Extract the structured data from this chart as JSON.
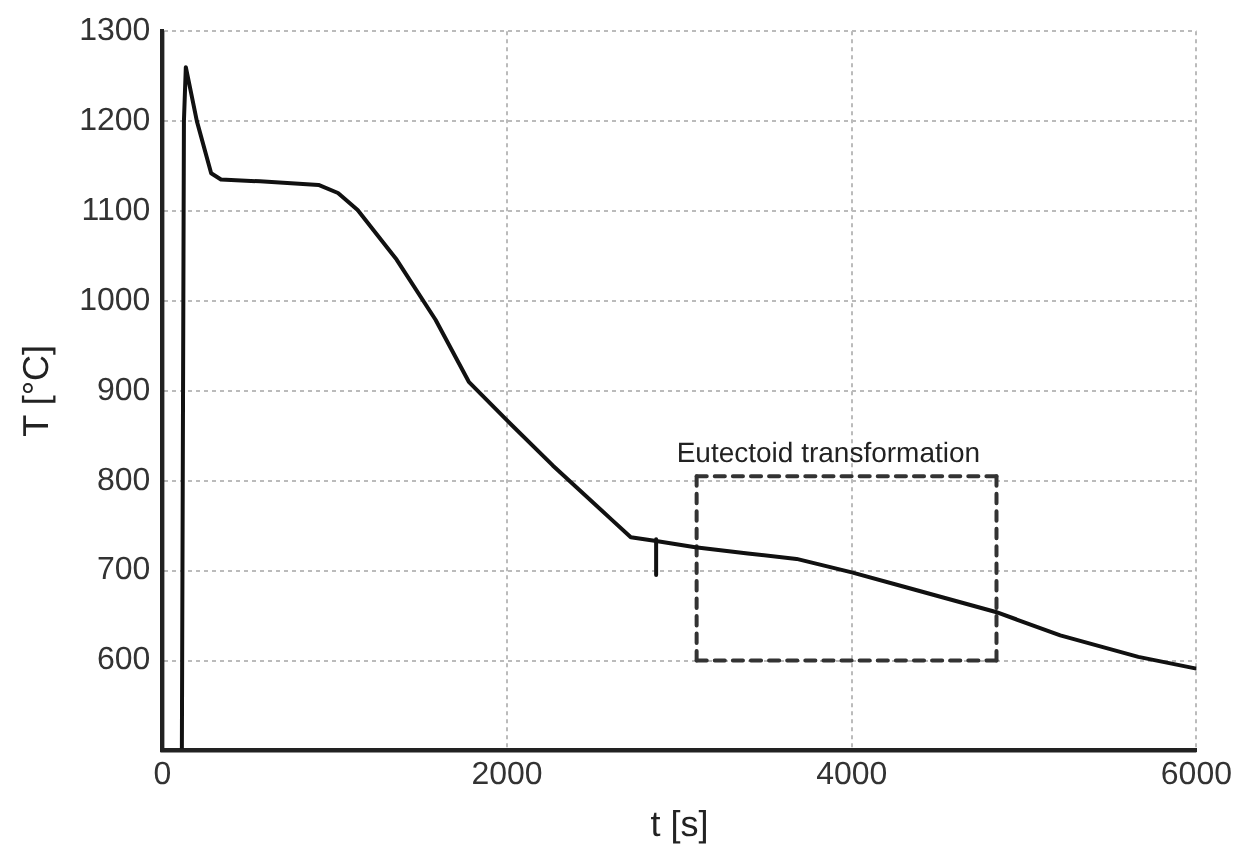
{
  "chart_data": {
    "type": "line",
    "xlabel": "t [s]",
    "ylabel": "T [°C]",
    "xlim": [
      0,
      6000
    ],
    "ylim": [
      500,
      1300
    ],
    "xticks": [
      0,
      2000,
      4000,
      6000
    ],
    "yticks": [
      600,
      700,
      800,
      900,
      1000,
      1100,
      1200,
      1300
    ],
    "grid": true,
    "legend": false,
    "marker": "none",
    "line_style": "solid",
    "series": [
      {
        "color": "#111111",
        "x": [
          113,
          125,
          136,
          200,
          283,
          340,
          566,
          906,
          1019,
          1133,
          1359,
          1585,
          1778,
          2000,
          2265,
          2605,
          2718,
          2865,
          3092,
          3397,
          3680,
          4000,
          4304,
          4836,
          5210,
          5663,
          6000
        ],
        "values": [
          500,
          1200,
          1260,
          1200,
          1142,
          1135,
          1133,
          1129,
          1120,
          1101,
          1046,
          979,
          910,
          867,
          817,
          757,
          737,
          733,
          726,
          719,
          713,
          698,
          682,
          654,
          628,
          604,
          591
        ]
      },
      {
        "color": "#111111",
        "x": [
          2865,
          2865
        ],
        "values": [
          735,
          695
        ]
      },
      {
        "color": "#333333",
        "line_style": "dashed",
        "x": [
          3100,
          3100,
          4840,
          4840,
          3100
        ],
        "values": [
          600,
          805,
          805,
          600,
          600
        ]
      }
    ],
    "annotations": [
      {
        "text": "Eutectoid transformation",
        "x": 3100,
        "y": 805
      }
    ]
  }
}
